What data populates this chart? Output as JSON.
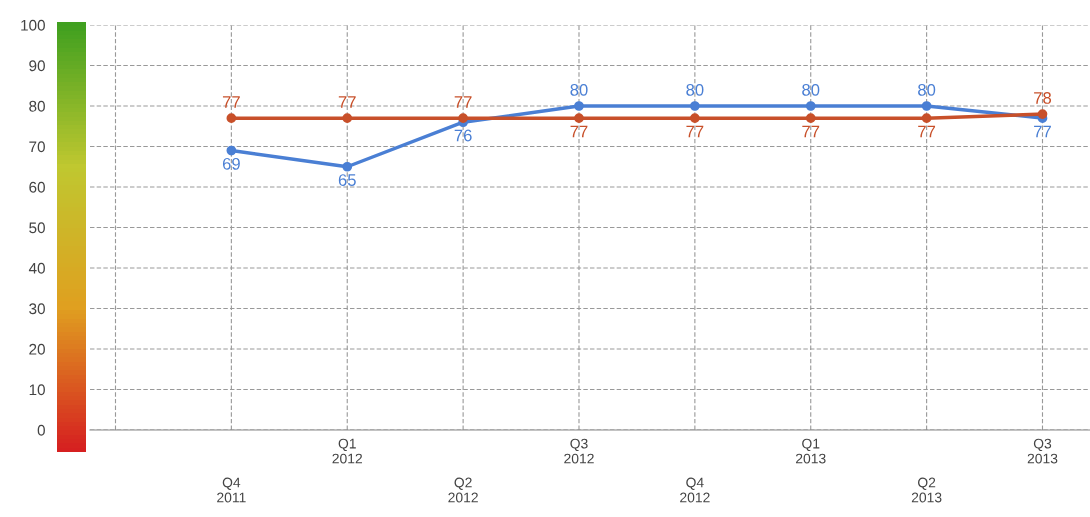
{
  "chart_data": {
    "type": "line",
    "categories": [
      null,
      "Q4\n2011",
      "Q1\n2012",
      "Q2\n2012",
      "Q3\n2012",
      "Q4\n2012",
      "Q1\n2013",
      "Q2\n2013",
      "Q3\n2013"
    ],
    "series": [
      {
        "color": "#4a7fd4",
        "values": [
          null,
          69,
          65,
          76,
          80,
          80,
          80,
          80,
          77
        ]
      },
      {
        "color": "#c8502a",
        "values": [
          null,
          77,
          77,
          77,
          77,
          77,
          77,
          77,
          78
        ]
      }
    ],
    "ylim": [
      0,
      100
    ],
    "yticks": [
      0,
      10,
      20,
      30,
      40,
      50,
      60,
      70,
      80,
      90,
      100
    ],
    "grid": true,
    "marker": "circle",
    "line_style": "solid",
    "data_labels": true
  }
}
